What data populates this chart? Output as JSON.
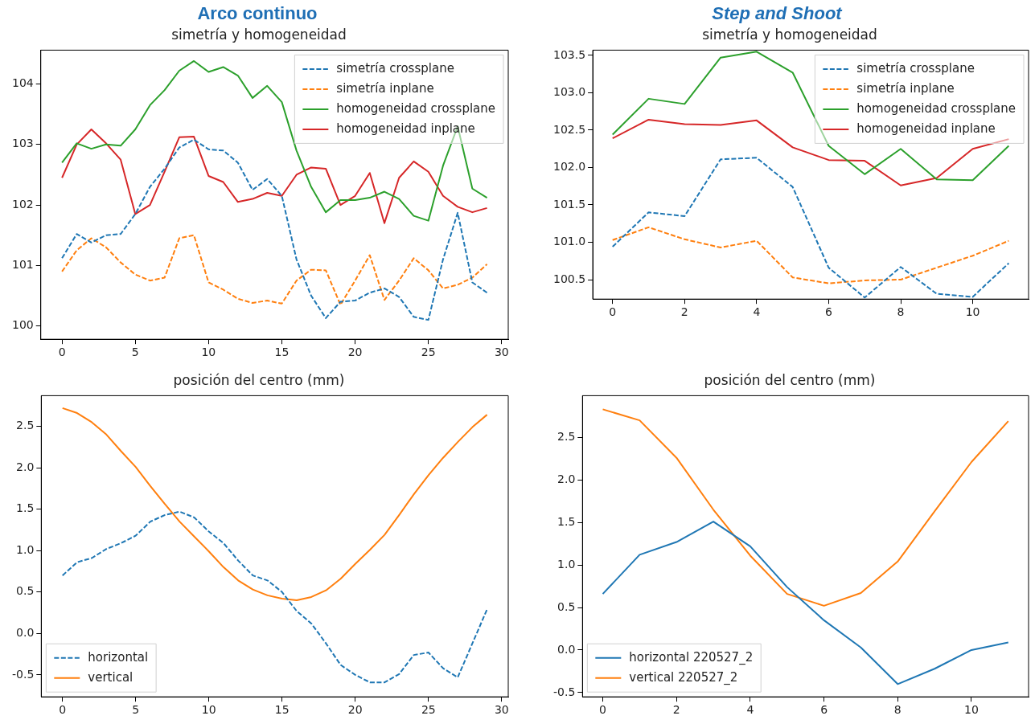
{
  "chart_data": [
    {
      "type": "line",
      "title": "simetría y homogeneidad",
      "annotations": [
        "Arco continuo"
      ],
      "x": [
        0,
        1,
        2,
        3,
        4,
        5,
        6,
        7,
        8,
        9,
        10,
        11,
        12,
        13,
        14,
        15,
        16,
        17,
        18,
        19,
        20,
        21,
        22,
        23,
        24,
        25,
        26,
        27,
        28,
        29
      ],
      "xlim": [
        -1.45,
        30.45
      ],
      "xticks": [
        0,
        5,
        10,
        15,
        20,
        25,
        30
      ],
      "ylim": [
        99.78,
        104.56
      ],
      "yticks": [
        100,
        101,
        102,
        103,
        104
      ],
      "grid": false,
      "legend": "top right",
      "series": [
        {
          "name": "simetría crossplane",
          "color": "#1f77b4",
          "line_style": "dashed",
          "values": [
            101.12,
            101.52,
            101.38,
            101.5,
            101.52,
            101.85,
            102.3,
            102.6,
            102.95,
            103.08,
            102.92,
            102.9,
            102.7,
            102.25,
            102.43,
            102.15,
            101.1,
            100.5,
            100.13,
            100.4,
            100.42,
            100.55,
            100.62,
            100.48,
            100.15,
            100.1,
            101.1,
            101.87,
            100.72,
            100.55
          ]
        },
        {
          "name": "simetría inplane",
          "color": "#ff7f0e",
          "line_style": "dashed",
          "values": [
            100.9,
            101.25,
            101.45,
            101.3,
            101.05,
            100.85,
            100.75,
            100.8,
            101.45,
            101.5,
            100.72,
            100.6,
            100.45,
            100.38,
            100.42,
            100.37,
            100.75,
            100.93,
            100.92,
            100.35,
            100.75,
            101.17,
            100.43,
            100.75,
            101.12,
            100.92,
            100.62,
            100.68,
            100.8,
            101.02
          ]
        },
        {
          "name": "homogeneidad crossplane",
          "color": "#2ca02c",
          "line_style": "solid",
          "values": [
            102.7,
            103.02,
            102.93,
            103.0,
            102.98,
            103.25,
            103.65,
            103.9,
            104.22,
            104.38,
            104.2,
            104.28,
            104.14,
            103.77,
            103.97,
            103.7,
            102.9,
            102.3,
            101.88,
            102.08,
            102.08,
            102.12,
            102.22,
            102.1,
            101.82,
            101.74,
            102.65,
            103.3,
            102.27,
            102.12
          ]
        },
        {
          "name": "homogeneidad inplane",
          "color": "#d62728",
          "line_style": "solid",
          "values": [
            102.45,
            103.0,
            103.25,
            103.02,
            102.75,
            101.85,
            102.0,
            102.55,
            103.12,
            103.13,
            102.48,
            102.38,
            102.05,
            102.1,
            102.2,
            102.15,
            102.5,
            102.62,
            102.6,
            102.0,
            102.15,
            102.53,
            101.7,
            102.45,
            102.72,
            102.55,
            102.15,
            101.97,
            101.88,
            101.95
          ]
        }
      ]
    },
    {
      "type": "line",
      "title": "simetría y homogeneidad",
      "annotations": [
        "Step and Shoot"
      ],
      "x": [
        0,
        1,
        2,
        3,
        4,
        5,
        6,
        7,
        8,
        9,
        10,
        11
      ],
      "xlim": [
        -0.55,
        11.55
      ],
      "xticks": [
        0,
        2,
        4,
        6,
        8,
        10
      ],
      "ylim": [
        100.24,
        103.57
      ],
      "yticks": [
        {
          "value": 100.5,
          "label": "100.5"
        },
        {
          "value": 101,
          "label": "101.0"
        },
        {
          "value": 101.5,
          "label": "101.5"
        },
        {
          "value": 102,
          "label": "102.0"
        },
        {
          "value": 102.5,
          "label": "102.5"
        },
        {
          "value": 103,
          "label": "103.0"
        },
        {
          "value": 103.5,
          "label": "103.5"
        }
      ],
      "grid": false,
      "legend": "top right",
      "series": [
        {
          "name": "simetría crossplane",
          "color": "#1f77b4",
          "line_style": "dashed",
          "values": [
            100.94,
            101.4,
            101.35,
            102.11,
            102.13,
            101.74,
            100.66,
            100.26,
            100.67,
            100.31,
            100.27,
            100.72
          ]
        },
        {
          "name": "simetría inplane",
          "color": "#ff7f0e",
          "line_style": "dashed",
          "values": [
            101.03,
            101.2,
            101.04,
            100.93,
            101.02,
            100.53,
            100.45,
            100.49,
            100.5,
            100.66,
            100.82,
            101.02
          ]
        },
        {
          "name": "homogeneidad crossplane",
          "color": "#2ca02c",
          "line_style": "solid",
          "values": [
            102.44,
            102.92,
            102.85,
            103.47,
            103.55,
            103.27,
            102.29,
            101.91,
            102.25,
            101.84,
            101.83,
            102.29
          ]
        },
        {
          "name": "homogeneidad inplane",
          "color": "#d62728",
          "line_style": "solid",
          "values": [
            102.39,
            102.64,
            102.58,
            102.57,
            102.63,
            102.27,
            102.1,
            102.09,
            101.76,
            101.86,
            102.25,
            102.38
          ]
        }
      ]
    },
    {
      "type": "line",
      "title": "posición del centro (mm)",
      "x": [
        0,
        1,
        2,
        3,
        4,
        5,
        6,
        7,
        8,
        9,
        10,
        11,
        12,
        13,
        14,
        15,
        16,
        17,
        18,
        19,
        20,
        21,
        22,
        23,
        24,
        25,
        26,
        27,
        28,
        29
      ],
      "xlim": [
        -1.45,
        30.45
      ],
      "xticks": [
        0,
        5,
        10,
        15,
        20,
        25,
        30
      ],
      "ylim": [
        -0.765,
        2.87
      ],
      "yticks": [
        -0.5,
        {
          "value": 0,
          "label": "0.0"
        },
        0.5,
        {
          "value": 1,
          "label": "1.0"
        },
        1.5,
        {
          "value": 2,
          "label": "2.0"
        },
        2.5
      ],
      "grid": false,
      "legend": "bottom left",
      "series": [
        {
          "name": "horizontal",
          "color": "#1f77b4",
          "line_style": "dashed",
          "values": [
            0.7,
            0.86,
            0.91,
            1.02,
            1.09,
            1.18,
            1.35,
            1.43,
            1.47,
            1.4,
            1.23,
            1.09,
            0.88,
            0.7,
            0.64,
            0.5,
            0.27,
            0.12,
            -0.12,
            -0.38,
            -0.5,
            -0.59,
            -0.59,
            -0.49,
            -0.26,
            -0.23,
            -0.42,
            -0.53,
            -0.12,
            0.29
          ]
        },
        {
          "name": "vertical",
          "color": "#ff7f0e",
          "line_style": "solid",
          "values": [
            2.72,
            2.66,
            2.55,
            2.4,
            2.2,
            2.01,
            1.78,
            1.56,
            1.35,
            1.17,
            0.99,
            0.8,
            0.64,
            0.53,
            0.46,
            0.42,
            0.4,
            0.44,
            0.52,
            0.66,
            0.84,
            1.01,
            1.19,
            1.43,
            1.68,
            1.91,
            2.12,
            2.31,
            2.49,
            2.64
          ]
        }
      ]
    },
    {
      "type": "line",
      "title": "posición del centro (mm)",
      "x": [
        0,
        1,
        2,
        3,
        4,
        5,
        6,
        7,
        8,
        9,
        10,
        11
      ],
      "xlim": [
        -0.55,
        11.55
      ],
      "xticks": [
        0,
        2,
        4,
        6,
        8,
        10
      ],
      "ylim": [
        -0.55,
        2.99
      ],
      "yticks": [
        -0.5,
        {
          "value": 0,
          "label": "0.0"
        },
        0.5,
        {
          "value": 1,
          "label": "1.0"
        },
        1.5,
        {
          "value": 2,
          "label": "2.0"
        },
        2.5
      ],
      "grid": false,
      "legend": "bottom left",
      "series": [
        {
          "name": "horizontal 220527_2",
          "color": "#1f77b4",
          "line_style": "solid",
          "values": [
            0.66,
            1.12,
            1.27,
            1.51,
            1.22,
            0.74,
            0.35,
            0.03,
            -0.4,
            -0.22,
            0.0,
            0.09
          ]
        },
        {
          "name": "vertical 220527_2",
          "color": "#ff7f0e",
          "line_style": "solid",
          "values": [
            2.83,
            2.7,
            2.26,
            1.65,
            1.11,
            0.66,
            0.52,
            0.67,
            1.04,
            1.63,
            2.21,
            2.69
          ]
        }
      ]
    }
  ]
}
